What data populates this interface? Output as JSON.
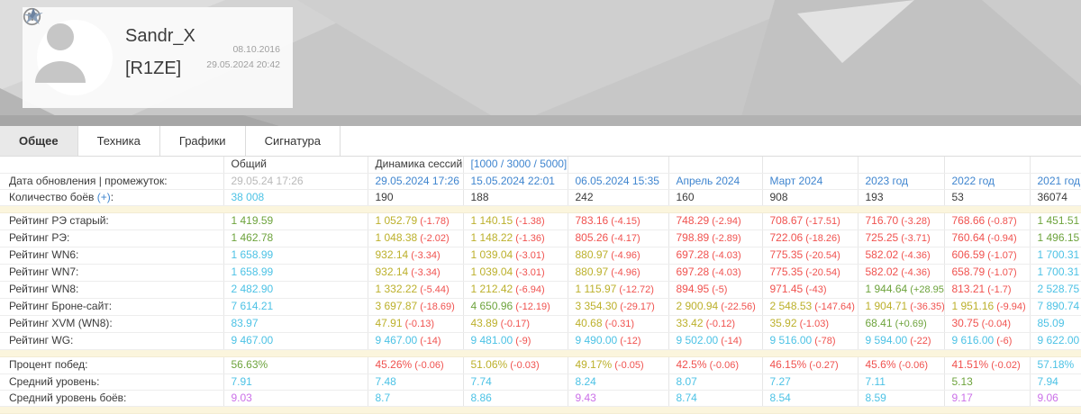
{
  "header": {
    "player_name": "Sandr_X",
    "clan_tag": "[R1ZE]",
    "reg_date": "08.10.2016",
    "last_seen": "29.05.2024 20:42"
  },
  "tabs": [
    {
      "name": "tab-general",
      "label": "Общее",
      "active": true
    },
    {
      "name": "tab-vehicles",
      "label": "Техника",
      "active": false
    },
    {
      "name": "tab-charts",
      "label": "Графики",
      "active": false
    },
    {
      "name": "tab-signature",
      "label": "Сигнатура",
      "active": false
    }
  ],
  "palette": {
    "g": "#6da33c",
    "c": "#4cc2e5",
    "o": "#bcb02b",
    "r": "#f0524f",
    "p": "#cb70e8",
    "d": "#3a3a3a",
    "m": "#b9b9b9",
    "b": "#3f85cf"
  },
  "table": {
    "rows": [
      {
        "name": "column-headers-row",
        "label": "",
        "cells": [
          {
            "t": "Общий",
            "hdr": true
          },
          {
            "t": "Динамика сессий",
            "hdr": true
          },
          {
            "t": "[1000 / 3000 / 5000]",
            "c": "b",
            "link": true,
            "n": "range-link"
          },
          {},
          {},
          {},
          {},
          {},
          {}
        ]
      },
      {
        "name": "update-dates-row",
        "label": "Дата обновления | промежуток:",
        "cells": [
          {
            "t": "29.05.24 17:26",
            "c": "m"
          },
          {
            "t": "29.05.2024 17:26",
            "c": "b",
            "link": true
          },
          {
            "t": "15.05.2024 22:01",
            "c": "b",
            "link": true
          },
          {
            "t": "06.05.2024 15:35",
            "c": "b",
            "link": true
          },
          {
            "t": "Апрель 2024",
            "c": "b",
            "link": true
          },
          {
            "t": "Март 2024",
            "c": "b",
            "link": true
          },
          {
            "t": "2023 год",
            "c": "b",
            "link": true
          },
          {
            "t": "2022 год",
            "c": "b",
            "link": true
          },
          {
            "t": "2021 год",
            "c": "b",
            "link": true
          }
        ]
      },
      {
        "name": "battles-count-row",
        "label_pre": "Количество боёв",
        "label_link": "(+)",
        "label_post": ":",
        "cells": [
          {
            "t": "38 008",
            "c": "c"
          },
          {
            "t": "190",
            "c": "d"
          },
          {
            "t": "188",
            "c": "d"
          },
          {
            "t": "242",
            "c": "d"
          },
          {
            "t": "160",
            "c": "d"
          },
          {
            "t": "908",
            "c": "d"
          },
          {
            "t": "193",
            "c": "d"
          },
          {
            "t": "53",
            "c": "d"
          },
          {
            "t": "36074",
            "c": "d"
          }
        ]
      },
      {
        "type": "separator"
      },
      {
        "name": "rating-re-old-row",
        "label": "Рейтинг РЭ старый:",
        "cells": [
          {
            "t": "1 419.59",
            "c": "g"
          },
          {
            "t": "1 052.79",
            "c": "o",
            "d": "(-1.78)",
            "dc": "r"
          },
          {
            "t": "1 140.15",
            "c": "o",
            "d": "(-1.38)",
            "dc": "r"
          },
          {
            "t": "783.16",
            "c": "r",
            "d": "(-4.15)",
            "dc": "r"
          },
          {
            "t": "748.29",
            "c": "r",
            "d": "(-2.94)",
            "dc": "r"
          },
          {
            "t": "708.67",
            "c": "r",
            "d": "(-17.51)",
            "dc": "r"
          },
          {
            "t": "716.70",
            "c": "r",
            "d": "(-3.28)",
            "dc": "r"
          },
          {
            "t": "768.66",
            "c": "r",
            "d": "(-0.87)",
            "dc": "r"
          },
          {
            "t": "1 451.51",
            "c": "g"
          }
        ]
      },
      {
        "name": "rating-re-row",
        "label": "Рейтинг РЭ:",
        "cells": [
          {
            "t": "1 462.78",
            "c": "g"
          },
          {
            "t": "1 048.38",
            "c": "o",
            "d": "(-2.02)",
            "dc": "r"
          },
          {
            "t": "1 148.22",
            "c": "o",
            "d": "(-1.36)",
            "dc": "r"
          },
          {
            "t": "805.26",
            "c": "r",
            "d": "(-4.17)",
            "dc": "r"
          },
          {
            "t": "798.89",
            "c": "r",
            "d": "(-2.89)",
            "dc": "r"
          },
          {
            "t": "722.06",
            "c": "r",
            "d": "(-18.26)",
            "dc": "r"
          },
          {
            "t": "725.25",
            "c": "r",
            "d": "(-3.71)",
            "dc": "r"
          },
          {
            "t": "760.64",
            "c": "r",
            "d": "(-0.94)",
            "dc": "r"
          },
          {
            "t": "1 496.15",
            "c": "g"
          }
        ]
      },
      {
        "name": "rating-wn6-row",
        "label": "Рейтинг WN6:",
        "cells": [
          {
            "t": "1 658.99",
            "c": "c"
          },
          {
            "t": "932.14",
            "c": "o",
            "d": "(-3.34)",
            "dc": "r"
          },
          {
            "t": "1 039.04",
            "c": "o",
            "d": "(-3.01)",
            "dc": "r"
          },
          {
            "t": "880.97",
            "c": "o",
            "d": "(-4.96)",
            "dc": "r"
          },
          {
            "t": "697.28",
            "c": "r",
            "d": "(-4.03)",
            "dc": "r"
          },
          {
            "t": "775.35",
            "c": "r",
            "d": "(-20.54)",
            "dc": "r"
          },
          {
            "t": "582.02",
            "c": "r",
            "d": "(-4.36)",
            "dc": "r"
          },
          {
            "t": "606.59",
            "c": "r",
            "d": "(-1.07)",
            "dc": "r"
          },
          {
            "t": "1 700.31",
            "c": "c"
          }
        ]
      },
      {
        "name": "rating-wn7-row",
        "label": "Рейтинг WN7:",
        "cells": [
          {
            "t": "1 658.99",
            "c": "c"
          },
          {
            "t": "932.14",
            "c": "o",
            "d": "(-3.34)",
            "dc": "r"
          },
          {
            "t": "1 039.04",
            "c": "o",
            "d": "(-3.01)",
            "dc": "r"
          },
          {
            "t": "880.97",
            "c": "o",
            "d": "(-4.96)",
            "dc": "r"
          },
          {
            "t": "697.28",
            "c": "r",
            "d": "(-4.03)",
            "dc": "r"
          },
          {
            "t": "775.35",
            "c": "r",
            "d": "(-20.54)",
            "dc": "r"
          },
          {
            "t": "582.02",
            "c": "r",
            "d": "(-4.36)",
            "dc": "r"
          },
          {
            "t": "658.79",
            "c": "r",
            "d": "(-1.07)",
            "dc": "r"
          },
          {
            "t": "1 700.31",
            "c": "c"
          }
        ]
      },
      {
        "name": "rating-wn8-row",
        "label": "Рейтинг WN8:",
        "cells": [
          {
            "t": "2 482.90",
            "c": "c"
          },
          {
            "t": "1 332.22",
            "c": "o",
            "d": "(-5.44)",
            "dc": "r"
          },
          {
            "t": "1 212.42",
            "c": "o",
            "d": "(-6.94)",
            "dc": "r"
          },
          {
            "t": "1 115.97",
            "c": "o",
            "d": "(-12.72)",
            "dc": "r"
          },
          {
            "t": "894.95",
            "c": "r",
            "d": "(-5)",
            "dc": "r"
          },
          {
            "t": "971.45",
            "c": "r",
            "d": "(-43)",
            "dc": "r"
          },
          {
            "t": "1 944.64",
            "c": "g",
            "d": "(+28.95)",
            "dc": "g"
          },
          {
            "t": "813.21",
            "c": "r",
            "d": "(-1.7)",
            "dc": "r"
          },
          {
            "t": "2 528.75",
            "c": "c"
          }
        ]
      },
      {
        "name": "rating-bronesite-row",
        "label": "Рейтинг Броне-сайт:",
        "cells": [
          {
            "t": "7 614.21",
            "c": "c"
          },
          {
            "t": "3 697.87",
            "c": "o",
            "d": "(-18.69)",
            "dc": "r"
          },
          {
            "t": "4 650.96",
            "c": "g",
            "d": "(-12.19)",
            "dc": "r"
          },
          {
            "t": "3 354.30",
            "c": "o",
            "d": "(-29.17)",
            "dc": "r"
          },
          {
            "t": "2 900.94",
            "c": "o",
            "d": "(-22.56)",
            "dc": "r"
          },
          {
            "t": "2 548.53",
            "c": "o",
            "d": "(-147.64)",
            "dc": "r"
          },
          {
            "t": "1 904.71",
            "c": "o",
            "d": "(-36.35)",
            "dc": "r"
          },
          {
            "t": "1 951.16",
            "c": "o",
            "d": "(-9.94)",
            "dc": "r"
          },
          {
            "t": "7 890.74",
            "c": "c"
          }
        ]
      },
      {
        "name": "rating-xvm-row",
        "label": "Рейтинг XVM (WN8):",
        "cells": [
          {
            "t": "83.97",
            "c": "c"
          },
          {
            "t": "47.91",
            "c": "o",
            "d": "(-0.13)",
            "dc": "r"
          },
          {
            "t": "43.89",
            "c": "o",
            "d": "(-0.17)",
            "dc": "r"
          },
          {
            "t": "40.68",
            "c": "o",
            "d": "(-0.31)",
            "dc": "r"
          },
          {
            "t": "33.42",
            "c": "o",
            "d": "(-0.12)",
            "dc": "r"
          },
          {
            "t": "35.92",
            "c": "o",
            "d": "(-1.03)",
            "dc": "r"
          },
          {
            "t": "68.41",
            "c": "g",
            "d": "(+0.69)",
            "dc": "g"
          },
          {
            "t": "30.75",
            "c": "r",
            "d": "(-0.04)",
            "dc": "r"
          },
          {
            "t": "85.09",
            "c": "c"
          }
        ]
      },
      {
        "name": "rating-wg-row",
        "label": "Рейтинг WG:",
        "cells": [
          {
            "t": "9 467.00",
            "c": "c"
          },
          {
            "t": "9 467.00",
            "c": "c",
            "d": "(-14)",
            "dc": "r"
          },
          {
            "t": "9 481.00",
            "c": "c",
            "d": "(-9)",
            "dc": "r"
          },
          {
            "t": "9 490.00",
            "c": "c",
            "d": "(-12)",
            "dc": "r"
          },
          {
            "t": "9 502.00",
            "c": "c",
            "d": "(-14)",
            "dc": "r"
          },
          {
            "t": "9 516.00",
            "c": "c",
            "d": "(-78)",
            "dc": "r"
          },
          {
            "t": "9 594.00",
            "c": "c",
            "d": "(-22)",
            "dc": "r"
          },
          {
            "t": "9 616.00",
            "c": "c",
            "d": "(-6)",
            "dc": "r"
          },
          {
            "t": "9 622.00",
            "c": "c"
          }
        ]
      },
      {
        "type": "separator"
      },
      {
        "name": "winrate-row",
        "label": "Процент побед:",
        "cells": [
          {
            "t": "56.63%",
            "c": "g"
          },
          {
            "t": "45.26%",
            "c": "r",
            "d": "(-0.06)",
            "dc": "r"
          },
          {
            "t": "51.06%",
            "c": "o",
            "d": "(-0.03)",
            "dc": "r"
          },
          {
            "t": "49.17%",
            "c": "o",
            "d": "(-0.05)",
            "dc": "r"
          },
          {
            "t": "42.5%",
            "c": "r",
            "d": "(-0.06)",
            "dc": "r"
          },
          {
            "t": "46.15%",
            "c": "r",
            "d": "(-0.27)",
            "dc": "r"
          },
          {
            "t": "45.6%",
            "c": "r",
            "d": "(-0.06)",
            "dc": "r"
          },
          {
            "t": "41.51%",
            "c": "r",
            "d": "(-0.02)",
            "dc": "r"
          },
          {
            "t": "57.18%",
            "c": "c"
          }
        ]
      },
      {
        "name": "avg-tier-row",
        "label": "Средний уровень:",
        "cells": [
          {
            "t": "7.91",
            "c": "c"
          },
          {
            "t": "7.48",
            "c": "c"
          },
          {
            "t": "7.74",
            "c": "c"
          },
          {
            "t": "8.24",
            "c": "c"
          },
          {
            "t": "8.07",
            "c": "c"
          },
          {
            "t": "7.27",
            "c": "c"
          },
          {
            "t": "7.11",
            "c": "c"
          },
          {
            "t": "5.13",
            "c": "g"
          },
          {
            "t": "7.94",
            "c": "c"
          }
        ]
      },
      {
        "name": "avg-battle-tier-row",
        "label": "Средний уровень боёв:",
        "cells": [
          {
            "t": "9.03",
            "c": "p"
          },
          {
            "t": "8.7",
            "c": "c"
          },
          {
            "t": "8.86",
            "c": "c"
          },
          {
            "t": "9.43",
            "c": "p"
          },
          {
            "t": "8.74",
            "c": "c"
          },
          {
            "t": "8.54",
            "c": "c"
          },
          {
            "t": "8.59",
            "c": "c"
          },
          {
            "t": "9.17",
            "c": "p"
          },
          {
            "t": "9.06",
            "c": "p"
          }
        ]
      },
      {
        "type": "separator"
      }
    ]
  }
}
